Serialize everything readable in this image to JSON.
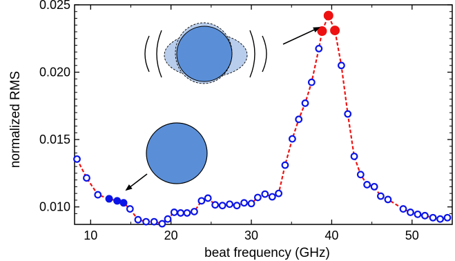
{
  "chart_data": {
    "type": "scatter",
    "title": "",
    "xlabel": "beat frequency (GHz)",
    "ylabel": "normalized RMS",
    "xlim": [
      8,
      55
    ],
    "ylim": [
      0.0087,
      0.025
    ],
    "xticks": [
      10,
      20,
      30,
      40,
      50
    ],
    "xtick_labels": [
      "10",
      "20",
      "30",
      "40",
      "50"
    ],
    "yticks": [
      0.01,
      0.015,
      0.02,
      0.025
    ],
    "ytick_labels": [
      "0.010",
      "0.015",
      "0.020",
      "0.025"
    ],
    "grid": false,
    "legend": "none",
    "colors": {
      "open_marker": "#0a14e6",
      "filled_blue": "#0a14e6",
      "filled_red": "#ee1111",
      "fit_line": "#ee1111",
      "illustration_fill": "#5a8fd8"
    },
    "series": [
      {
        "marker": "open-circle",
        "x": [
          8.3,
          9.5,
          10.9,
          14.9,
          15.9,
          16.9,
          17.9,
          18.9,
          19.6,
          20.4,
          21.2,
          22.0,
          22.9,
          23.8,
          24.6,
          25.5,
          26.4,
          27.3,
          28.2,
          29.1,
          30.0,
          30.8,
          31.7,
          32.6,
          33.4,
          34.2,
          35.1,
          35.9,
          36.7,
          37.5,
          38.4,
          41.2,
          42.0,
          42.8,
          43.6,
          44.4,
          45.3,
          46.1,
          47.0,
          48.9,
          49.8,
          50.7,
          51.6,
          52.6,
          53.5,
          54.4
        ],
        "y": [
          0.01355,
          0.01215,
          0.0109,
          0.00985,
          0.00905,
          0.0089,
          0.0089,
          0.00875,
          0.0091,
          0.0096,
          0.00955,
          0.00955,
          0.00965,
          0.01045,
          0.01065,
          0.01015,
          0.0101,
          0.0102,
          0.0101,
          0.0103,
          0.01025,
          0.0107,
          0.01095,
          0.01075,
          0.011,
          0.0131,
          0.01505,
          0.0165,
          0.0177,
          0.01925,
          0.02175,
          0.0205,
          0.0169,
          0.01375,
          0.0124,
          0.01165,
          0.0115,
          0.0108,
          0.01055,
          0.00985,
          0.0096,
          0.00945,
          0.00935,
          0.0092,
          0.0091,
          0.0092
        ]
      },
      {
        "marker": "filled-circle",
        "color": "blue",
        "x": [
          12.3,
          13.3,
          14.1
        ],
        "y": [
          0.0106,
          0.01045,
          0.0103
        ]
      },
      {
        "marker": "filled-circle",
        "color": "red",
        "x": [
          38.8,
          39.6,
          40.4
        ],
        "y": [
          0.02305,
          0.0242,
          0.0231
        ]
      }
    ],
    "fit_curve": {
      "style": "dashed",
      "x": [
        8.3,
        9.5,
        10.9,
        12.3,
        13.3,
        14.1,
        14.9,
        15.9,
        16.9,
        17.9,
        18.9,
        19.6,
        20.4,
        21.2,
        22.0,
        22.9,
        23.8,
        24.6,
        25.5,
        26.4,
        27.3,
        28.2,
        29.1,
        30.0,
        30.8,
        31.7,
        32.6,
        33.4,
        34.2,
        35.1,
        35.9,
        36.7,
        37.5,
        38.4,
        38.8,
        39.6,
        40.4,
        41.2,
        42.0,
        42.8,
        43.6,
        44.4,
        45.3,
        46.1,
        47.0,
        48.9,
        49.8,
        50.7,
        51.6,
        52.6,
        53.5,
        54.4
      ],
      "y": [
        0.01355,
        0.01215,
        0.0109,
        0.0106,
        0.01045,
        0.0103,
        0.00985,
        0.00905,
        0.0089,
        0.0089,
        0.00875,
        0.0091,
        0.0096,
        0.00955,
        0.00955,
        0.00965,
        0.01045,
        0.01065,
        0.01015,
        0.0101,
        0.0102,
        0.0101,
        0.0103,
        0.01025,
        0.0107,
        0.01095,
        0.01075,
        0.011,
        0.0131,
        0.01505,
        0.0165,
        0.0177,
        0.01925,
        0.02175,
        0.02305,
        0.0242,
        0.0231,
        0.0205,
        0.0169,
        0.01375,
        0.0124,
        0.01165,
        0.0115,
        0.0108,
        0.01055,
        0.00985,
        0.0096,
        0.00945,
        0.00935,
        0.0092,
        0.0091,
        0.0092
      ]
    },
    "illustrations": [
      {
        "name": "circle-drop-illustration",
        "points_to": "blue-filled-points"
      },
      {
        "name": "oscillating-drop-illustration",
        "points_to": "red-filled-points"
      }
    ]
  }
}
